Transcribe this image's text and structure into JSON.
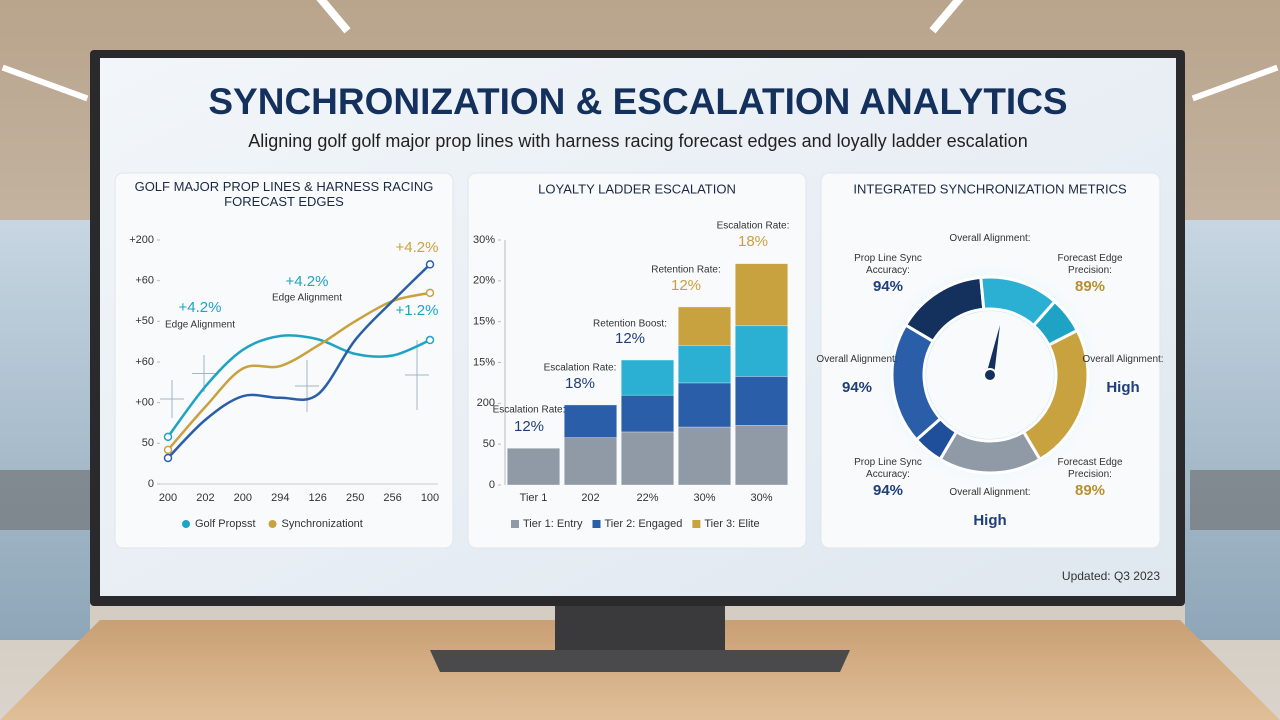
{
  "title": "SYNCHRONIZATION & ESCALATION ANALYTICS",
  "subtitle": "Aligning golf golf major prop lines with harness racing forecast edges and loyally ladder escalation",
  "updated": "Updated: Q3 2023",
  "chart_data": [
    {
      "type": "line",
      "title": "GOLF MAJOR PROP LINES & HARNESS RACING FORECAST EDGES",
      "categories": [
        "200",
        "202",
        "200",
        "294",
        "126",
        "250",
        "256",
        "100"
      ],
      "series": [
        {
          "name": "Golf Propsst",
          "color": "#1fa3c4",
          "values": [
            58,
            120,
            165,
            182,
            178,
            160,
            158,
            177
          ]
        },
        {
          "name": "Synchronizationt",
          "color": "#c9a240",
          "values": [
            42,
            95,
            142,
            145,
            170,
            200,
            225,
            235
          ]
        },
        {
          "color": "#2a5ea8",
          "values": [
            32,
            79,
            108,
            106,
            110,
            177,
            225,
            270
          ]
        }
      ],
      "ylim": [
        0,
        300
      ],
      "yticks": [
        {
          "value": 300,
          "label": "+200"
        },
        {
          "value": 250,
          "label": "+60"
        },
        {
          "value": 200,
          "label": "+50"
        },
        {
          "value": 150,
          "label": "+60"
        },
        {
          "value": 100,
          "label": "+00"
        },
        50,
        0
      ],
      "annotations": [
        {
          "text": "+4.2%",
          "color": "#1fa3c4"
        },
        {
          "text": "Edge Alignment",
          "color": "#333333"
        },
        {
          "text": "+4.2%",
          "color": "#1fa3c4"
        },
        {
          "text": "Edge Alignment",
          "color": "#333333"
        },
        {
          "text": "+4.2%",
          "color": "#c9a240"
        },
        {
          "text": "+1.2%",
          "color": "#1fa3c4"
        }
      ]
    },
    {
      "type": "stacked_bar",
      "title": "LOYALTY LADDER ESCALATION",
      "categories": [
        "Tier 1",
        "202",
        "22%",
        "30%",
        "30%"
      ],
      "series": [
        {
          "name": "Tier 1: Entry",
          "color": "#8f9aa6",
          "values": [
            45,
            58,
            65,
            71,
            73
          ]
        },
        {
          "name": "Tier 2: Engaged",
          "color": "#2a5ea8",
          "values": [
            0,
            40,
            45,
            54,
            60
          ]
        },
        {
          "color": "#2bb0d4",
          "values": [
            0,
            0,
            43,
            46,
            62
          ]
        },
        {
          "name": "Tier 3: Elite",
          "color": "#c9a240",
          "values": [
            0,
            0,
            0,
            47,
            76
          ]
        }
      ],
      "ylim": [
        0,
        300
      ],
      "yticks": [
        {
          "value": 300,
          "label": "30%"
        },
        {
          "value": 250,
          "label": "20%"
        },
        {
          "value": 200,
          "label": "15%"
        },
        {
          "value": 150,
          "label": "15%"
        },
        {
          "value": 100,
          "label": "200"
        },
        50,
        0
      ],
      "annotations": [
        {
          "label": "Escalation Rate:",
          "value": "12%",
          "color": "#1f3f7a"
        },
        {
          "label": "Escalation Rate:",
          "value": "18%",
          "color": "#1f3f7a"
        },
        {
          "label": "Retention Boost:",
          "value": "12%",
          "color": "#1f3f7a"
        },
        {
          "label": "Retention Rate:",
          "value": "12%",
          "color": "#c9a240"
        },
        {
          "label": "Escalation Rate:",
          "value": "18%",
          "color": "#c9a240"
        }
      ]
    },
    {
      "type": "donut",
      "title": "INTEGRATED SYNCHRONIZATION METRICS",
      "values": [
        15,
        13,
        6,
        24,
        17,
        5,
        20
      ],
      "colors": [
        "#13315c",
        "#2bb0d4",
        "#1fa3c4",
        "#c9a240",
        "#8f9aa6",
        "#1f4f9a",
        "#2a5ea8"
      ],
      "annotations": [
        {
          "label": "Overall Alignment:"
        },
        {
          "label": "Forecast Edge Precision:",
          "value": "89%",
          "color": "#b8902f"
        },
        {
          "label": "Prop Line Sync Accuracy:",
          "value": "94%",
          "color": "#1f3f7a"
        },
        {
          "label": "Overall Alignment:",
          "value": "94%",
          "color": "#1f3f7a"
        },
        {
          "label": "Overall Alignment:",
          "value": "High",
          "color": "#1f3f7a"
        },
        {
          "label": "Prop Line Sync Accuracy:",
          "value": "94%",
          "color": "#1f3f7a"
        },
        {
          "label": "Forecast Edge Precision:",
          "value": "89%",
          "color": "#b8902f"
        },
        {
          "label": "Overall Alignment:",
          "value": "High",
          "color": "#1f3f7a"
        }
      ]
    }
  ]
}
